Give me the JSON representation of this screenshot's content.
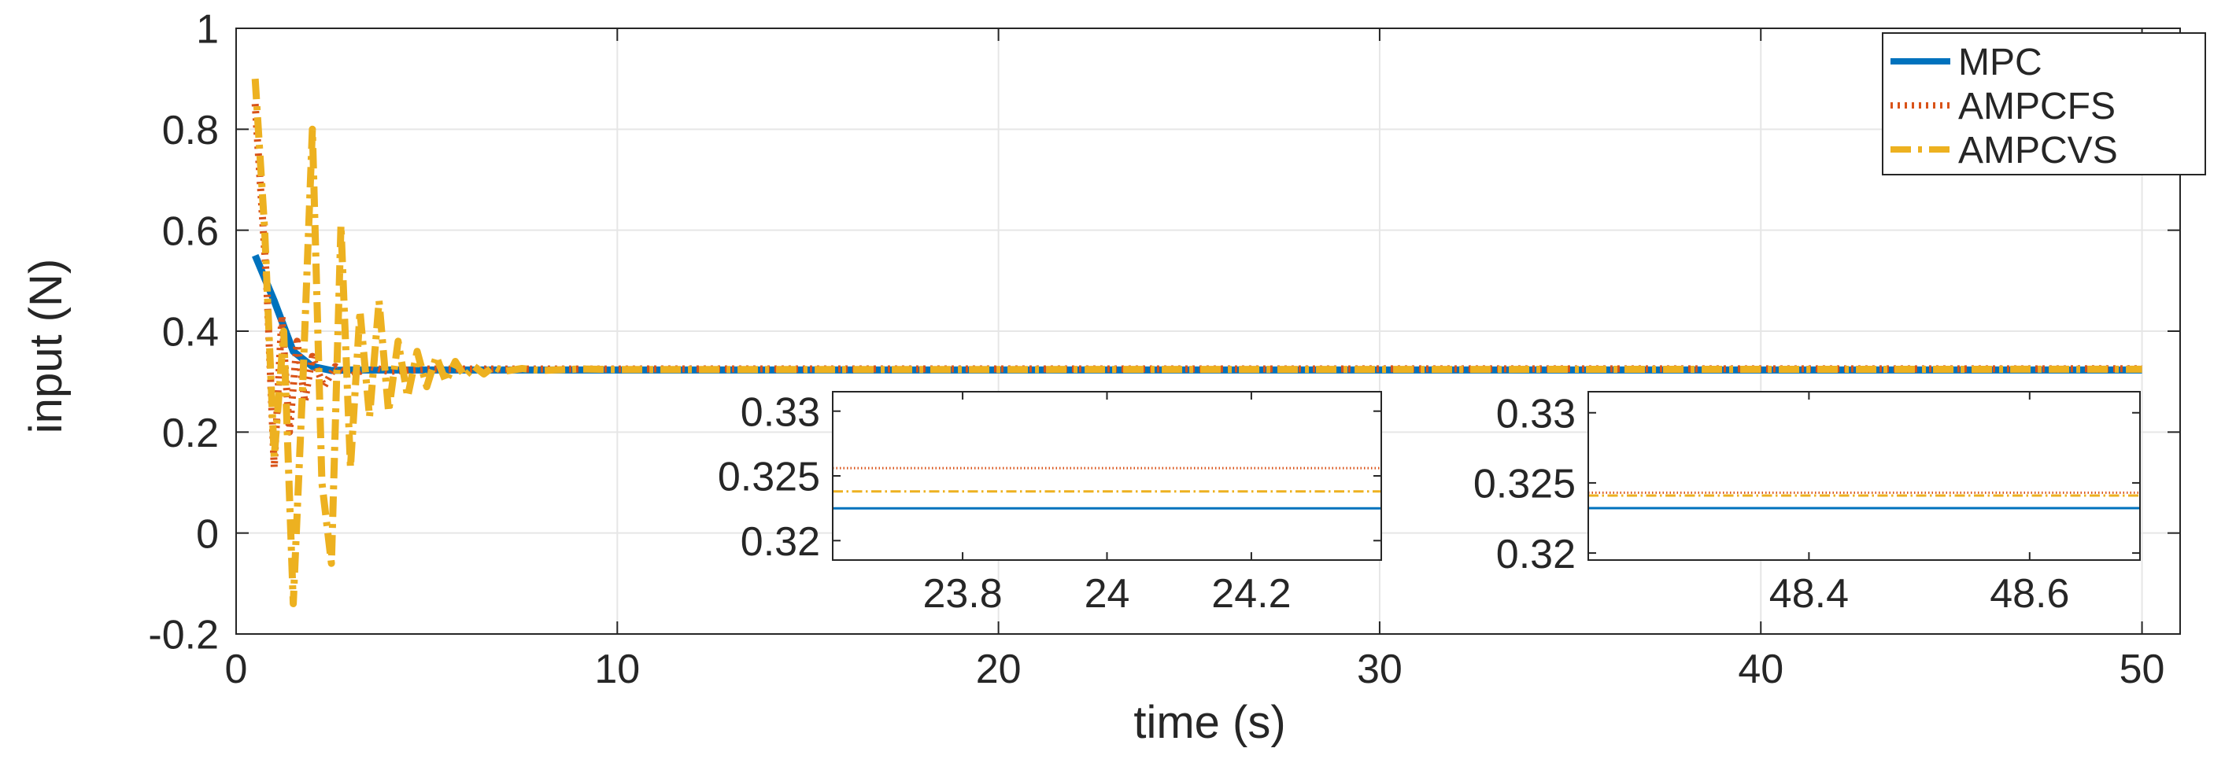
{
  "chart_data": [
    {
      "type": "line",
      "xlabel": "time (s)",
      "ylabel": "input (N)",
      "xlim": [
        0,
        51
      ],
      "ylim": [
        -0.2,
        1
      ],
      "xticks": [
        0,
        10,
        20,
        30,
        40,
        50
      ],
      "xtick_labels": [
        "0",
        "10",
        "20",
        "30",
        "40",
        "50"
      ],
      "yticks": [
        -0.2,
        0,
        0.2,
        0.4,
        0.6,
        0.8,
        1
      ],
      "ytick_labels": [
        "-0.2",
        "0",
        "0.2",
        "0.4",
        "0.6",
        "0.8",
        "1"
      ],
      "grid": true,
      "legend_position": "top-right",
      "legend": [
        "MPC",
        "AMPCFS",
        "AMPCVS"
      ],
      "series": [
        {
          "name": "MPC",
          "color": "#0072BD",
          "style": "solid",
          "x": [
            0.5,
            1.0,
            1.5,
            2.0,
            2.5,
            3.0,
            4.0,
            50.0
          ],
          "y": [
            0.55,
            0.46,
            0.36,
            0.33,
            0.322,
            0.323,
            0.323,
            0.323
          ]
        },
        {
          "name": "AMPCFS",
          "color": "#D95319",
          "style": "dotted",
          "x": [
            0.5,
            0.8,
            1.0,
            1.2,
            1.4,
            1.6,
            1.8,
            2.0,
            2.3,
            2.6,
            3.0,
            3.5,
            4.0,
            5.0,
            50.0
          ],
          "y": [
            0.85,
            0.5,
            0.13,
            0.43,
            0.2,
            0.38,
            0.26,
            0.35,
            0.29,
            0.33,
            0.31,
            0.33,
            0.32,
            0.325,
            0.3255
          ]
        },
        {
          "name": "AMPCVS",
          "color": "#EDB120",
          "style": "dashdot",
          "x": [
            0.5,
            0.75,
            1.0,
            1.25,
            1.5,
            1.75,
            2.0,
            2.25,
            2.5,
            2.75,
            3.0,
            3.25,
            3.5,
            3.75,
            4.0,
            4.25,
            4.5,
            4.75,
            5.0,
            5.25,
            5.5,
            5.75,
            6.0,
            6.25,
            6.5,
            6.75,
            7.0,
            7.5,
            8.0,
            9.0,
            10.0,
            50.0
          ],
          "y": [
            0.9,
            0.6,
            0.15,
            0.4,
            -0.14,
            0.3,
            0.8,
            0.1,
            -0.06,
            0.61,
            0.13,
            0.44,
            0.23,
            0.46,
            0.24,
            0.38,
            0.27,
            0.36,
            0.29,
            0.35,
            0.3,
            0.34,
            0.31,
            0.33,
            0.315,
            0.33,
            0.32,
            0.326,
            0.322,
            0.325,
            0.324,
            0.3245
          ]
        }
      ]
    },
    {
      "type": "line",
      "xlim": [
        23.62,
        24.38
      ],
      "ylim": [
        0.3185,
        0.3315
      ],
      "xticks": [
        23.8,
        24,
        24.2
      ],
      "xtick_labels": [
        "23.8",
        "24",
        "24.2"
      ],
      "yticks": [
        0.32,
        0.325,
        0.33
      ],
      "ytick_labels": [
        "0.32",
        "0.325",
        "0.33"
      ],
      "grid": false,
      "series": [
        {
          "name": "MPC",
          "color": "#0072BD",
          "style": "solid",
          "x": [
            23.62,
            24.38
          ],
          "y": [
            0.3225,
            0.3225
          ]
        },
        {
          "name": "AMPCFS",
          "color": "#D95319",
          "style": "dotted",
          "x": [
            23.62,
            24.38
          ],
          "y": [
            0.3256,
            0.3256
          ]
        },
        {
          "name": "AMPCVS",
          "color": "#EDB120",
          "style": "dashdot",
          "x": [
            23.62,
            24.38
          ],
          "y": [
            0.3238,
            0.3238
          ]
        }
      ]
    },
    {
      "type": "line",
      "xlim": [
        48.2,
        48.7
      ],
      "ylim": [
        0.3195,
        0.3315
      ],
      "xticks": [
        48.4,
        48.6
      ],
      "xtick_labels": [
        "48.4",
        "48.6"
      ],
      "yticks": [
        0.32,
        0.325,
        0.33
      ],
      "ytick_labels": [
        "0.32",
        "0.325",
        "0.33"
      ],
      "grid": false,
      "series": [
        {
          "name": "MPC",
          "color": "#0072BD",
          "style": "solid",
          "x": [
            48.2,
            48.7
          ],
          "y": [
            0.3232,
            0.3232
          ]
        },
        {
          "name": "AMPCFS",
          "color": "#D95319",
          "style": "dotted",
          "x": [
            48.2,
            48.7
          ],
          "y": [
            0.3243,
            0.3243
          ]
        },
        {
          "name": "AMPCVS",
          "color": "#EDB120",
          "style": "dashdot",
          "x": [
            48.2,
            48.7
          ],
          "y": [
            0.3241,
            0.3241
          ]
        }
      ]
    }
  ]
}
